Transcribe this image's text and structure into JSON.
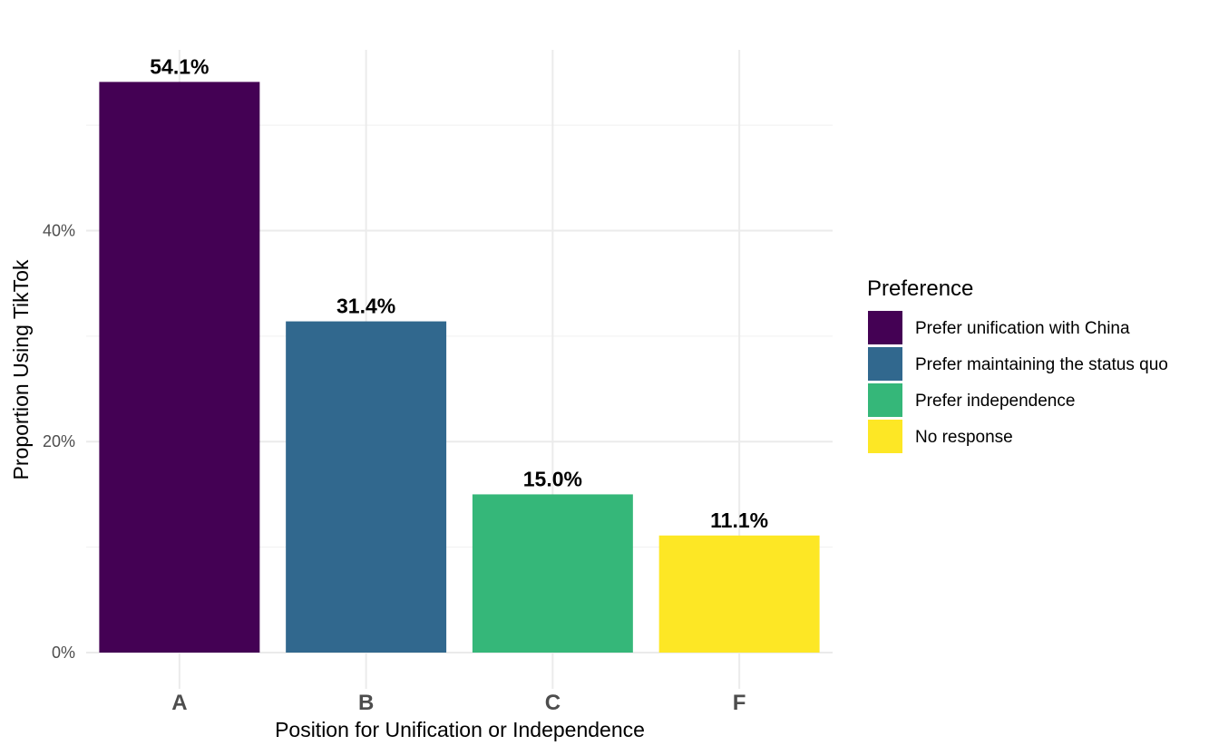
{
  "chart_data": {
    "type": "bar",
    "categories": [
      "A",
      "B",
      "C",
      "F"
    ],
    "values": [
      54.1,
      31.4,
      15.0,
      11.1
    ],
    "data_labels": [
      "54.1%",
      "31.4%",
      "15.0%",
      "11.1%"
    ],
    "colors": [
      "#440154",
      "#31688e",
      "#35b779",
      "#fde725"
    ],
    "xlabel": "Position for Unification or Independence",
    "ylabel": "Proportion Using TikTok",
    "ylim": [
      0,
      58
    ],
    "y_ticks": [
      0,
      20,
      40
    ],
    "y_tick_labels": [
      "0%",
      "20%",
      "40%"
    ],
    "grid": true,
    "legend": {
      "title": "Preference",
      "position": "right",
      "entries": [
        {
          "label": "Prefer unification with China",
          "color": "#440154"
        },
        {
          "label": "Prefer maintaining the status quo",
          "color": "#31688e"
        },
        {
          "label": "Prefer independence",
          "color": "#35b779"
        },
        {
          "label": "No response",
          "color": "#fde725"
        }
      ]
    }
  }
}
